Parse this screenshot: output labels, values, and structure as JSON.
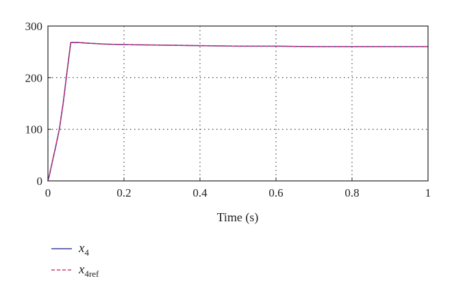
{
  "chart_data": {
    "type": "line",
    "xlabel": "Time (s)",
    "ylabel": "",
    "xlim": [
      0,
      1
    ],
    "ylim": [
      0,
      300
    ],
    "xticks": [
      "0",
      "0.2",
      "0.4",
      "0.6",
      "0.8",
      "1"
    ],
    "yticks": [
      "0",
      "100",
      "200",
      "300"
    ],
    "grid": "dotted",
    "legend_placement": "below",
    "series": [
      {
        "name_base": "x",
        "name_sub": "4",
        "color": "#3b3b9a",
        "style": "solid",
        "x": [
          0,
          0.005,
          0.01,
          0.02,
          0.03,
          0.04,
          0.05,
          0.06,
          0.08,
          0.1,
          0.15,
          0.2,
          0.3,
          0.4,
          0.5,
          0.6,
          0.7,
          0.8,
          0.9,
          1.0
        ],
        "y": [
          0,
          15,
          32,
          65,
          100,
          150,
          210,
          268,
          268,
          267,
          265,
          264,
          263,
          262,
          261,
          261,
          260,
          260,
          260,
          260
        ]
      },
      {
        "name_base": "x",
        "name_sub": "4ref",
        "color": "#d8336f",
        "style": "dashed",
        "x": [
          0,
          0.005,
          0.01,
          0.02,
          0.03,
          0.04,
          0.05,
          0.06,
          0.08,
          0.1,
          0.15,
          0.2,
          0.3,
          0.4,
          0.5,
          0.6,
          0.7,
          0.8,
          0.9,
          1.0
        ],
        "y": [
          0,
          15,
          32,
          65,
          100,
          150,
          210,
          268,
          268,
          267,
          265,
          264,
          263,
          262,
          261,
          261,
          260,
          260,
          260,
          260
        ]
      }
    ]
  }
}
